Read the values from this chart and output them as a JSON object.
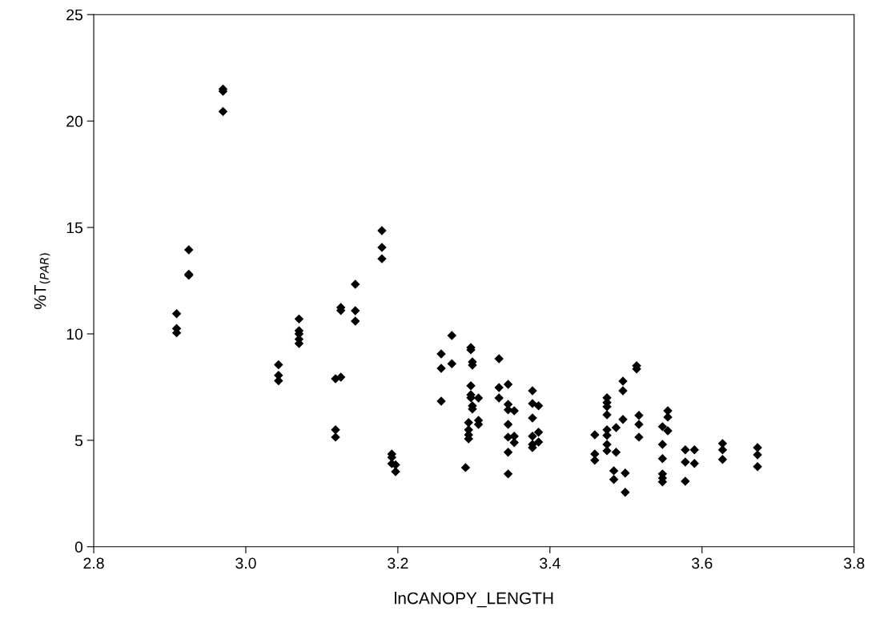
{
  "chart_data": {
    "type": "scatter",
    "xlabel": "lnCANOPY_LENGTH",
    "ylabel": "%T$_{(PAR)}$",
    "xlim": [
      2.8,
      3.8
    ],
    "xticks": [
      {
        "value": 2.8,
        "label": "2.8"
      },
      {
        "value": 3.0,
        "label": "3.0"
      },
      {
        "value": 3.2,
        "label": "3.2"
      },
      {
        "value": 3.4,
        "label": "3.4"
      },
      {
        "value": 3.6,
        "label": "3.6"
      },
      {
        "value": 3.8,
        "label": "3.8"
      }
    ],
    "ylim": [
      0,
      25
    ],
    "yticks": [
      0,
      5,
      10,
      15,
      20,
      25
    ],
    "grid": false,
    "marker": "diamond",
    "series": [
      {
        "color": "#000000",
        "x": [
          2.909,
          2.909,
          2.909,
          2.925,
          2.925,
          2.925,
          2.97,
          2.97,
          2.97,
          3.043,
          3.043,
          3.043,
          3.07,
          3.07,
          3.07,
          3.07,
          3.07,
          3.118,
          3.118,
          3.118,
          3.125,
          3.125,
          3.125,
          3.144,
          3.144,
          3.144,
          3.179,
          3.179,
          3.179,
          3.192,
          3.192,
          3.192,
          3.197,
          3.197,
          3.257,
          3.257,
          3.257,
          3.271,
          3.271,
          3.296,
          3.296,
          3.298,
          3.298,
          3.296,
          3.296,
          3.296,
          3.306,
          3.298,
          3.298,
          3.306,
          3.306,
          3.293,
          3.293,
          3.293,
          3.293,
          3.289,
          3.333,
          3.333,
          3.333,
          3.345,
          3.345,
          3.345,
          3.345,
          3.345,
          3.345,
          3.345,
          3.353,
          3.353,
          3.353,
          3.377,
          3.377,
          3.377,
          3.377,
          3.377,
          3.377,
          3.385,
          3.385,
          3.385,
          3.459,
          3.459,
          3.459,
          3.475,
          3.475,
          3.475,
          3.475,
          3.475,
          3.475,
          3.475,
          3.475,
          3.484,
          3.484,
          3.487,
          3.487,
          3.496,
          3.496,
          3.496,
          3.499,
          3.499,
          3.514,
          3.514,
          3.517,
          3.517,
          3.517,
          3.548,
          3.548,
          3.548,
          3.548,
          3.548,
          3.548,
          3.555,
          3.555,
          3.555,
          3.578,
          3.578,
          3.578,
          3.59,
          3.59,
          3.627,
          3.627,
          3.627,
          3.673,
          3.673,
          3.673
        ],
        "values": [
          10.95,
          10.25,
          10.05,
          13.95,
          12.8,
          12.75,
          21.5,
          21.4,
          20.45,
          8.55,
          8.05,
          7.8,
          10.7,
          10.15,
          10.0,
          9.75,
          9.55,
          7.89,
          5.49,
          5.15,
          7.97,
          11.24,
          11.1,
          12.33,
          11.09,
          10.6,
          14.85,
          14.06,
          13.53,
          4.36,
          4.2,
          3.9,
          3.85,
          3.53,
          9.06,
          8.38,
          6.84,
          9.92,
          8.6,
          9.36,
          9.25,
          8.68,
          8.53,
          7.56,
          7.14,
          7.0,
          6.99,
          6.62,
          6.47,
          5.94,
          5.75,
          5.83,
          5.49,
          5.26,
          5.07,
          3.72,
          8.83,
          7.48,
          6.99,
          7.63,
          6.69,
          6.43,
          5.75,
          5.15,
          4.44,
          3.42,
          6.39,
          5.19,
          4.89,
          7.33,
          6.73,
          6.05,
          5.19,
          4.81,
          4.66,
          6.62,
          5.38,
          4.92,
          5.26,
          4.36,
          4.06,
          7.0,
          6.77,
          6.58,
          6.2,
          5.49,
          5.23,
          4.81,
          4.51,
          3.57,
          3.16,
          5.6,
          4.44,
          7.78,
          7.33,
          5.98,
          3.46,
          2.56,
          8.5,
          8.35,
          6.17,
          5.75,
          5.15,
          5.64,
          4.81,
          4.14,
          3.42,
          3.23,
          3.05,
          6.39,
          6.09,
          5.45,
          4.55,
          3.98,
          3.08,
          4.55,
          3.91,
          4.85,
          4.55,
          4.1,
          4.66,
          4.32,
          3.76
        ]
      }
    ]
  }
}
